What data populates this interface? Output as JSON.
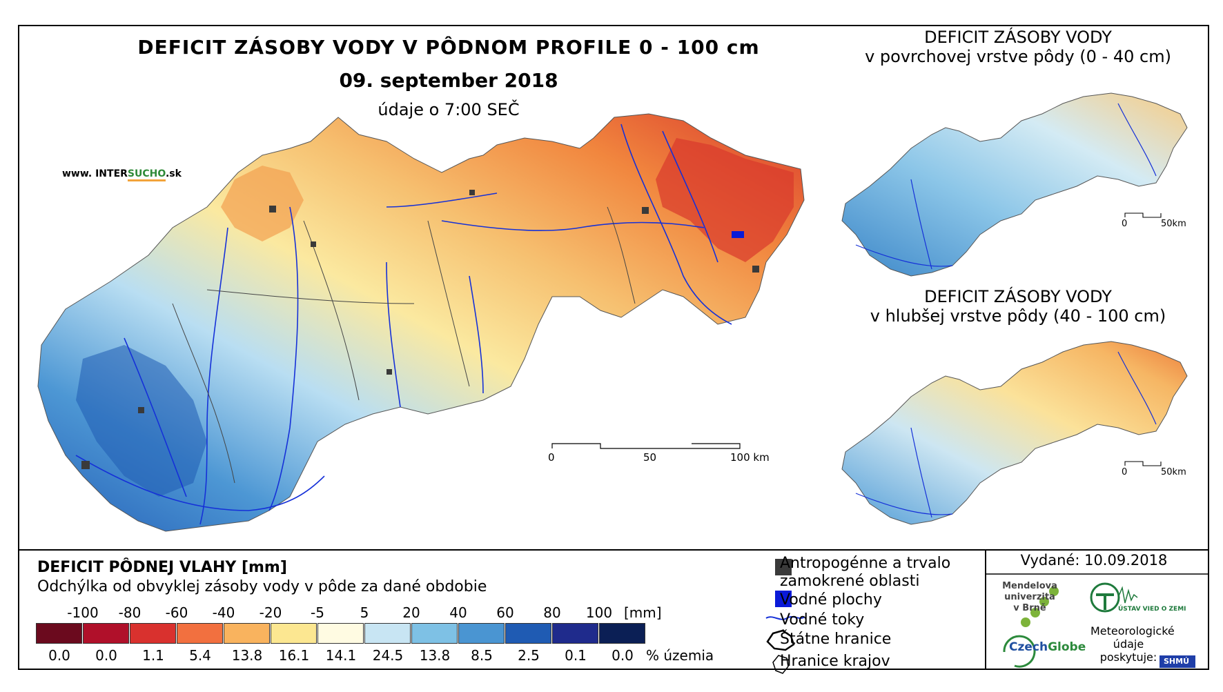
{
  "title": {
    "main": "DEFICIT ZÁSOBY VODY V PÔDNOM PROFILE 0 - 100 cm",
    "date": "09. september 2018",
    "time": "údaje o 7:00 SEČ"
  },
  "website": {
    "prefix": "www. INTER",
    "accent": "SUCHO",
    "suffix": ".sk"
  },
  "insets": {
    "top": {
      "line1": "DEFICIT ZÁSOBY VODY",
      "line2": "v povrchovej vrstve pôdy (0 - 40 cm)",
      "scale": [
        "0",
        "50km"
      ]
    },
    "bottom": {
      "line1": "DEFICIT ZÁSOBY VODY",
      "line2": "v hlubšej vrstve pôdy (40 - 100 cm)",
      "scale": [
        "0",
        "50km"
      ]
    }
  },
  "main_scale": [
    "0",
    "50",
    "100 km"
  ],
  "legend": {
    "title": "DEFICIT PÔDNEJ VLAHY [mm]",
    "subtitle": "Odchýlka od obvyklej zásoby vody v pôde za dané obdobie",
    "thresholds": [
      "-100",
      "-80",
      "-60",
      "-40",
      "-20",
      "-5",
      "5",
      "20",
      "40",
      "60",
      "80",
      "100"
    ],
    "unit": "[mm]",
    "classes": [
      {
        "color": "#6b0a1e",
        "percent": "0.0"
      },
      {
        "color": "#b0102a",
        "percent": "0.0"
      },
      {
        "color": "#d9312e",
        "percent": "1.1"
      },
      {
        "color": "#f2703f",
        "percent": "5.4"
      },
      {
        "color": "#f9b35e",
        "percent": "13.8"
      },
      {
        "color": "#fce791",
        "percent": "16.1"
      },
      {
        "color": "#fffbe2",
        "percent": "14.1"
      },
      {
        "color": "#c8e5f3",
        "percent": "24.5"
      },
      {
        "color": "#7ec1e5",
        "percent": "13.8"
      },
      {
        "color": "#4a95d2",
        "percent": "8.5"
      },
      {
        "color": "#1f5bb3",
        "percent": "2.5"
      },
      {
        "color": "#1f2b8c",
        "percent": "0.1"
      },
      {
        "color": "#0b1f55",
        "percent": "0.0"
      }
    ],
    "percent_unit": "% územia"
  },
  "symbols": [
    {
      "label": "Antropogénne a trvalo",
      "label2": "zamokrené oblasti",
      "icon": "gray-square"
    },
    {
      "label": "Vodné plochy",
      "icon": "blue-square"
    },
    {
      "label": "Vodné toky",
      "icon": "river-line"
    },
    {
      "label": "Štátne hranice",
      "icon": "state-border"
    },
    {
      "label": "Hranice krajov",
      "icon": "region-border"
    }
  ],
  "issued": "Vydané: 10.09.2018",
  "logos": {
    "mendel": [
      "Mendelova",
      "univerzita",
      "v Brně"
    ],
    "czechglobe_a": "Czech",
    "czechglobe_b": "Globe",
    "uvz": "ÚSTAV VIED O ZEMI",
    "meteo": [
      "Meteorologické",
      "údaje",
      "poskytuje:"
    ],
    "shmu": "SHMÚ"
  }
}
